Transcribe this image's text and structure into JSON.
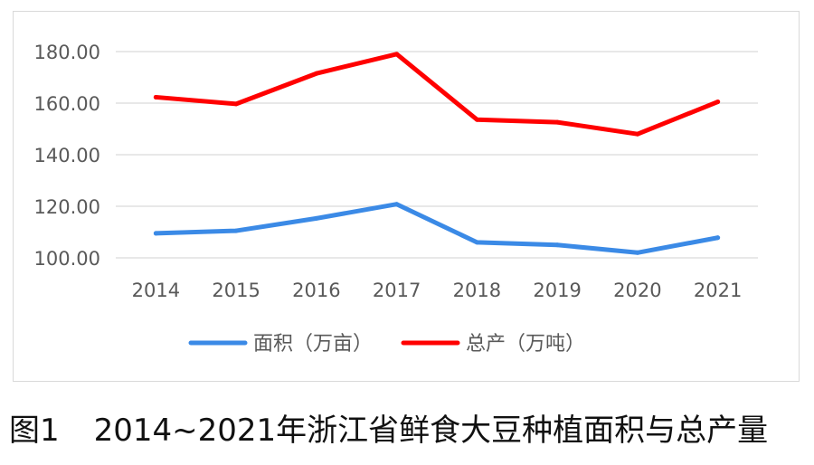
{
  "chart_data": {
    "type": "line",
    "categories": [
      "2014",
      "2015",
      "2016",
      "2017",
      "2018",
      "2019",
      "2020",
      "2021"
    ],
    "y_tick_labels": [
      "100.00",
      "120.00",
      "140.00",
      "160.00",
      "180.00"
    ],
    "ylim": [
      100,
      180
    ],
    "grid": true,
    "legend_position": "bottom",
    "series": [
      {
        "name": "面积（万亩）",
        "color": "#3b8ae6",
        "values": [
          109.5,
          110.5,
          115.3,
          120.8,
          106.0,
          105.0,
          102.0,
          107.8
        ]
      },
      {
        "name": "总产（万吨）",
        "color": "#ff0000",
        "values": [
          162.3,
          159.7,
          171.5,
          179.0,
          153.6,
          152.6,
          148.0,
          160.5
        ]
      }
    ]
  },
  "caption": {
    "figure_number": "图1",
    "text": "2014~2021年浙江省鲜食大豆种植面积与总产量"
  }
}
